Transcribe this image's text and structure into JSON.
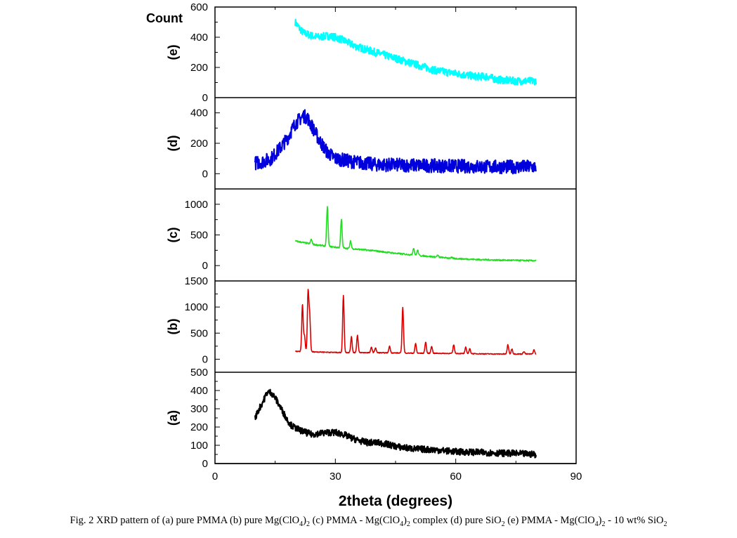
{
  "chart_data": {
    "type": "line",
    "title": "",
    "xlabel": "2theta (degrees)",
    "ylabel": "Count",
    "xlim": [
      0,
      90
    ],
    "xticks": [
      "0",
      "30",
      "60",
      "90"
    ],
    "panels": [
      {
        "label": "(e)",
        "color": "#00ffff",
        "ylim": [
          0,
          600
        ],
        "yticks": [
          "0",
          "200",
          "400",
          "600"
        ],
        "ytick_values": [
          0,
          200,
          400,
          600
        ],
        "noise": 25,
        "x": [
          20,
          21,
          22,
          24,
          26,
          28,
          30,
          32,
          35,
          40,
          45,
          50,
          55,
          60,
          65,
          68,
          70,
          75,
          80
        ],
        "y": [
          500,
          460,
          430,
          410,
          400,
          410,
          400,
          380,
          340,
          300,
          260,
          220,
          180,
          160,
          140,
          140,
          120,
          110,
          110
        ],
        "peaks": []
      },
      {
        "label": "(d)",
        "color": "#0000dd",
        "ylim": [
          -100,
          500
        ],
        "yticks": [
          "0",
          "200",
          "400"
        ],
        "ytick_values": [
          0,
          200,
          400
        ],
        "noise": 45,
        "x": [
          10,
          12,
          14,
          16,
          18,
          20,
          22,
          23,
          24,
          26,
          28,
          30,
          34,
          40,
          50,
          60,
          70,
          80
        ],
        "y": [
          70,
          80,
          100,
          160,
          230,
          330,
          380,
          370,
          320,
          220,
          140,
          100,
          80,
          60,
          55,
          50,
          45,
          45
        ],
        "peaks": []
      },
      {
        "label": "(c)",
        "color": "#22dd22",
        "ylim": [
          -250,
          1250
        ],
        "yticks": [
          "0",
          "500",
          "1000"
        ],
        "ytick_values": [
          0,
          500,
          1000
        ],
        "noise": 12,
        "x": [
          20,
          25,
          30,
          35,
          40,
          45,
          50,
          55,
          60,
          65,
          70,
          75,
          80
        ],
        "y": [
          400,
          340,
          300,
          270,
          240,
          200,
          170,
          140,
          115,
          100,
          90,
          85,
          80
        ],
        "peaks": [
          [
            24,
            430
          ],
          [
            28,
            960
          ],
          [
            31.5,
            750
          ],
          [
            33.8,
            400
          ],
          [
            41,
            230
          ],
          [
            49.5,
            290
          ],
          [
            50.5,
            250
          ],
          [
            55.5,
            170
          ],
          [
            59,
            130
          ]
        ]
      },
      {
        "label": "(b)",
        "color": "#dd0000",
        "ylim": [
          -250,
          1500
        ],
        "yticks": [
          "0",
          "500",
          "1000",
          "1500"
        ],
        "ytick_values": [
          0,
          500,
          1000,
          1500
        ],
        "noise": 8,
        "x": [
          20,
          25,
          30,
          40,
          50,
          60,
          70,
          80
        ],
        "y": [
          150,
          140,
          130,
          125,
          115,
          110,
          100,
          100
        ],
        "peaks": [
          [
            21.8,
            1050
          ],
          [
            22.3,
            450
          ],
          [
            23.2,
            1280
          ],
          [
            23.6,
            830
          ],
          [
            32,
            1220
          ],
          [
            34,
            430
          ],
          [
            35.5,
            460
          ],
          [
            39,
            230
          ],
          [
            40,
            220
          ],
          [
            43.5,
            250
          ],
          [
            46.8,
            1000
          ],
          [
            50,
            300
          ],
          [
            52.5,
            330
          ],
          [
            54,
            250
          ],
          [
            59.5,
            280
          ],
          [
            62.5,
            230
          ],
          [
            63.5,
            200
          ],
          [
            73,
            280
          ],
          [
            74,
            200
          ],
          [
            77,
            150
          ],
          [
            79.5,
            180
          ]
        ]
      },
      {
        "label": "(a)",
        "color": "#000000",
        "ylim": [
          0,
          500
        ],
        "yticks": [
          "0",
          "100",
          "200",
          "300",
          "400",
          "500"
        ],
        "ytick_values": [
          0,
          100,
          200,
          300,
          400,
          500
        ],
        "noise": 18,
        "x": [
          10,
          11,
          12,
          13,
          14,
          15,
          16,
          17,
          18,
          19,
          20,
          22,
          24,
          26,
          28,
          30,
          32,
          34,
          36,
          38,
          40,
          42,
          44,
          46,
          50,
          55,
          60,
          65,
          70,
          75,
          80
        ],
        "y": [
          250,
          300,
          340,
          390,
          390,
          360,
          320,
          280,
          240,
          210,
          195,
          175,
          160,
          165,
          170,
          170,
          160,
          140,
          125,
          115,
          115,
          110,
          100,
          90,
          80,
          75,
          65,
          62,
          58,
          55,
          50
        ],
        "peaks": []
      }
    ]
  },
  "caption": [
    {
      "t": "Fig. 2 XRD pattern of (a) pure PMMA (b) pure Mg(ClO"
    },
    {
      "t": "4",
      "sub": true
    },
    {
      "t": ")"
    },
    {
      "t": "2",
      "sub": true
    },
    {
      "t": " (c) PMMA - Mg(ClO"
    },
    {
      "t": "4",
      "sub": true
    },
    {
      "t": ")"
    },
    {
      "t": "2",
      "sub": true
    },
    {
      "t": " complex (d) pure SiO"
    },
    {
      "t": "2",
      "sub": true
    },
    {
      "t": " (e) PMMA - Mg(ClO"
    },
    {
      "t": "4",
      "sub": true
    },
    {
      "t": ")"
    },
    {
      "t": "2",
      "sub": true
    },
    {
      "t": " - 10 wt% SiO"
    },
    {
      "t": "2",
      "sub": true
    }
  ]
}
